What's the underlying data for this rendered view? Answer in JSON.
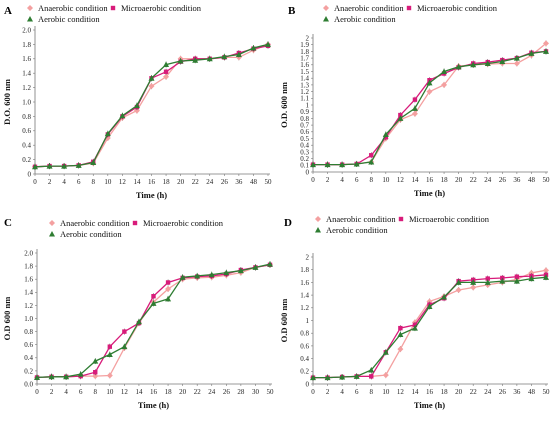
{
  "chart_data": [
    {
      "type": "line",
      "panel_label": "A",
      "xlabel": "Time (h)",
      "ylabel": "D.O. 600 nm",
      "categories": [
        "0",
        "2",
        "4",
        "6",
        "8",
        "10",
        "12",
        "14",
        "16",
        "18",
        "20",
        "22",
        "24",
        "26",
        "36",
        "48",
        "50"
      ],
      "ylim": [
        0,
        2.0
      ],
      "yticks": [
        "0",
        "0.2",
        "0.4",
        "0.6",
        "0.8",
        "1.0",
        "1.2",
        "1.4",
        "1.6",
        "1.8",
        "2.0"
      ],
      "series": [
        {
          "name": "Anaerobic condition",
          "color": "#f4a0a0",
          "marker": "diamond",
          "values": [
            0.1,
            0.11,
            0.11,
            0.12,
            0.15,
            0.5,
            0.78,
            0.88,
            1.22,
            1.35,
            1.6,
            1.6,
            1.6,
            1.62,
            1.62,
            1.72,
            1.8
          ]
        },
        {
          "name": "Microaerobic condition",
          "color": "#d81b7a",
          "marker": "square",
          "values": [
            0.1,
            0.11,
            0.11,
            0.12,
            0.17,
            0.55,
            0.8,
            0.93,
            1.33,
            1.42,
            1.56,
            1.6,
            1.6,
            1.62,
            1.68,
            1.74,
            1.78
          ]
        },
        {
          "name": "Aerobic condition",
          "color": "#2e7d32",
          "marker": "triangle",
          "values": [
            0.1,
            0.11,
            0.11,
            0.12,
            0.16,
            0.56,
            0.81,
            0.95,
            1.33,
            1.52,
            1.57,
            1.58,
            1.6,
            1.63,
            1.66,
            1.75,
            1.8
          ]
        }
      ]
    },
    {
      "type": "line",
      "panel_label": "B",
      "xlabel": "Time (h)",
      "ylabel": "O.D. 600 nm",
      "categories": [
        "0",
        "2",
        "4",
        "6",
        "8",
        "10",
        "12",
        "14",
        "16",
        "18",
        "20",
        "22",
        "24",
        "26",
        "36",
        "48",
        "50"
      ],
      "ylim": [
        0,
        2.0
      ],
      "yticks": [
        "0",
        "0.1",
        "0.2",
        "0.3",
        "0.4",
        "0.5",
        "0.6",
        "0.7",
        "0.8",
        "0.9",
        "1",
        "1.1",
        "1.2",
        "1.3",
        "1.4",
        "1.5",
        "1.6",
        "1.7",
        "1.8",
        "1.9",
        "2"
      ],
      "series": [
        {
          "name": "Anaerobic condition",
          "color": "#f4a0a0",
          "marker": "diamond",
          "values": [
            0.11,
            0.11,
            0.11,
            0.12,
            0.15,
            0.5,
            0.78,
            0.87,
            1.2,
            1.3,
            1.58,
            1.6,
            1.61,
            1.62,
            1.62,
            1.74,
            1.92
          ]
        },
        {
          "name": "Microaerobic condition",
          "color": "#d81b7a",
          "marker": "square",
          "values": [
            0.11,
            0.11,
            0.11,
            0.12,
            0.25,
            0.52,
            0.85,
            1.08,
            1.37,
            1.47,
            1.56,
            1.62,
            1.64,
            1.67,
            1.7,
            1.78,
            1.8
          ]
        },
        {
          "name": "Aerobic condition",
          "color": "#2e7d32",
          "marker": "triangle",
          "values": [
            0.11,
            0.11,
            0.11,
            0.12,
            0.15,
            0.56,
            0.8,
            0.95,
            1.33,
            1.5,
            1.57,
            1.6,
            1.62,
            1.65,
            1.7,
            1.77,
            1.8
          ]
        }
      ]
    },
    {
      "type": "line",
      "panel_label": "C",
      "xlabel": "Time (h)",
      "ylabel": "O.D 600 nm",
      "categories": [
        "0",
        "2",
        "4",
        "6",
        "8",
        "10",
        "12",
        "14",
        "16",
        "18",
        "20",
        "22",
        "24",
        "26",
        "28",
        "30",
        "50"
      ],
      "ylim": [
        0,
        2.0
      ],
      "yticks": [
        "0.0",
        "0.2",
        "0.4",
        "0.6",
        "0.8",
        "1.0",
        "1.2",
        "1.4",
        "1.6",
        "1.8",
        "2.0"
      ],
      "series": [
        {
          "name": "Anaerobic condition",
          "color": "#f4a0a0",
          "marker": "diamond",
          "values": [
            0.1,
            0.11,
            0.11,
            0.12,
            0.12,
            0.13,
            0.55,
            0.93,
            1.25,
            1.45,
            1.6,
            1.62,
            1.63,
            1.66,
            1.7,
            1.78,
            1.82
          ]
        },
        {
          "name": "Microaerobic condition",
          "color": "#d81b7a",
          "marker": "square",
          "values": [
            0.1,
            0.11,
            0.11,
            0.12,
            0.18,
            0.57,
            0.8,
            0.93,
            1.34,
            1.55,
            1.62,
            1.64,
            1.65,
            1.68,
            1.74,
            1.78,
            1.82
          ]
        },
        {
          "name": "Aerobic condition",
          "color": "#2e7d32",
          "marker": "triangle",
          "values": [
            0.1,
            0.11,
            0.11,
            0.15,
            0.35,
            0.45,
            0.57,
            0.95,
            1.23,
            1.3,
            1.63,
            1.65,
            1.67,
            1.7,
            1.73,
            1.78,
            1.83
          ]
        }
      ]
    },
    {
      "type": "line",
      "panel_label": "D",
      "xlabel": "Time (h)",
      "ylabel": "O.D 600 nm",
      "categories": [
        "0",
        "2",
        "4",
        "6",
        "8",
        "10",
        "12",
        "14",
        "16",
        "18",
        "20",
        "22",
        "24",
        "26",
        "36",
        "48",
        "50"
      ],
      "ylim": [
        0,
        2.0
      ],
      "yticks": [
        "0",
        "0.2",
        "0.4",
        "0.6",
        "0.8",
        "1",
        "1.2",
        "1.4",
        "1.6",
        "1.8",
        "2"
      ],
      "series": [
        {
          "name": "Anaerobic condition",
          "color": "#f4a0a0",
          "marker": "diamond",
          "values": [
            0.1,
            0.1,
            0.11,
            0.12,
            0.12,
            0.14,
            0.55,
            0.97,
            1.3,
            1.38,
            1.48,
            1.52,
            1.56,
            1.6,
            1.65,
            1.75,
            1.79
          ]
        },
        {
          "name": "Microaerobic condition",
          "color": "#d81b7a",
          "marker": "square",
          "values": [
            0.1,
            0.1,
            0.11,
            0.12,
            0.12,
            0.5,
            0.88,
            0.93,
            1.25,
            1.35,
            1.62,
            1.64,
            1.66,
            1.67,
            1.69,
            1.7,
            1.72
          ]
        },
        {
          "name": "Aerobic condition",
          "color": "#2e7d32",
          "marker": "triangle",
          "values": [
            0.1,
            0.1,
            0.11,
            0.12,
            0.22,
            0.5,
            0.78,
            0.88,
            1.22,
            1.37,
            1.6,
            1.6,
            1.6,
            1.62,
            1.62,
            1.66,
            1.68
          ]
        }
      ]
    }
  ]
}
